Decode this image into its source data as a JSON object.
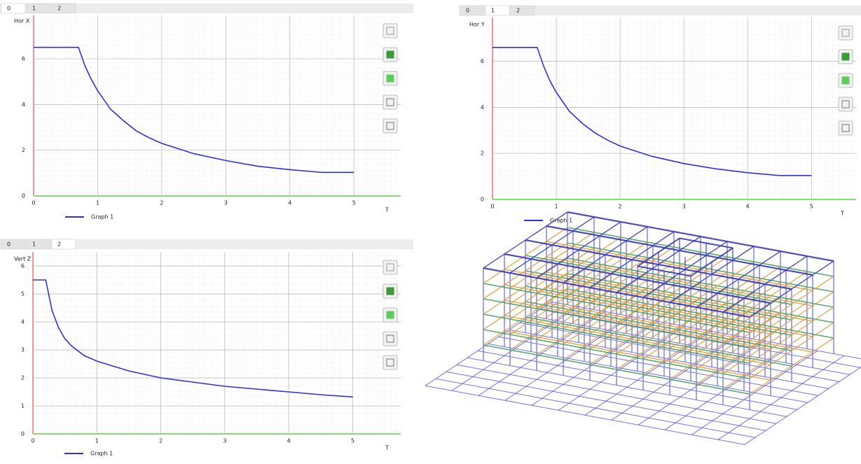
{
  "chart_data": [
    {
      "type": "line",
      "tabs": [
        "0",
        "1",
        "2"
      ],
      "active_tab": 0,
      "ylabel": "Hor X",
      "xlabel": "T",
      "x": [
        0,
        0.7,
        0.8,
        0.9,
        1,
        1.2,
        1.4,
        1.6,
        1.8,
        2,
        2.5,
        3,
        3.5,
        4,
        4.5,
        5
      ],
      "series": [
        {
          "name": "Graph 1",
          "color": "#3030d8",
          "values": [
            6.5,
            6.5,
            5.7,
            5.1,
            4.6,
            3.8,
            3.3,
            2.85,
            2.55,
            2.3,
            1.85,
            1.55,
            1.3,
            1.15,
            1.03,
            1.03
          ]
        }
      ],
      "xlim": [
        0,
        5.73
      ],
      "ylim": [
        0,
        7.9
      ],
      "xticks": [
        0,
        1,
        2,
        3,
        4,
        5
      ],
      "yticks": [
        0,
        2,
        4,
        6
      ],
      "grid": true,
      "x_axis_color": "#7ad36a",
      "y_axis_color": "#e8736a"
    },
    {
      "type": "line",
      "tabs": [
        "0",
        "1",
        "2"
      ],
      "active_tab": 1,
      "ylabel": "Hor Y",
      "xlabel": "T",
      "x": [
        0,
        0.7,
        0.8,
        0.9,
        1,
        1.2,
        1.4,
        1.6,
        1.8,
        2,
        2.5,
        3,
        3.5,
        4,
        4.5,
        5
      ],
      "series": [
        {
          "name": "Graph 1",
          "color": "#3030d8",
          "values": [
            6.6,
            6.6,
            5.8,
            5.15,
            4.65,
            3.85,
            3.32,
            2.9,
            2.58,
            2.32,
            1.87,
            1.56,
            1.33,
            1.16,
            1.04,
            1.04
          ]
        }
      ],
      "xlim": [
        0,
        5.7
      ],
      "ylim": [
        0,
        7.9
      ],
      "xticks": [
        0,
        1,
        2,
        3,
        4,
        5
      ],
      "yticks": [
        0,
        2,
        4,
        6
      ],
      "grid": true,
      "x_axis_color": "#7ad36a",
      "y_axis_color": "#e8736a"
    },
    {
      "type": "line",
      "tabs": [
        "0",
        "1",
        "2"
      ],
      "active_tab": 2,
      "ylabel": "Vert Z",
      "xlabel": "T",
      "x": [
        0,
        0.2,
        0.3,
        0.4,
        0.5,
        0.6,
        0.8,
        1,
        1.5,
        2,
        2.5,
        3,
        3.5,
        4,
        4.5,
        5
      ],
      "series": [
        {
          "name": "Graph 1",
          "color": "#3030d8",
          "values": [
            5.5,
            5.5,
            4.4,
            3.8,
            3.4,
            3.15,
            2.8,
            2.6,
            2.25,
            2.0,
            1.85,
            1.7,
            1.6,
            1.5,
            1.4,
            1.32
          ]
        }
      ],
      "xlim": [
        0,
        5.75
      ],
      "ylim": [
        0,
        6.5
      ],
      "xticks": [
        0,
        1,
        2,
        3,
        4,
        5
      ],
      "yticks": [
        0,
        1,
        2,
        3,
        4,
        5,
        6
      ],
      "grid": true,
      "x_axis_color": "#7ad36a",
      "y_axis_color": "#e8736a"
    }
  ]
}
